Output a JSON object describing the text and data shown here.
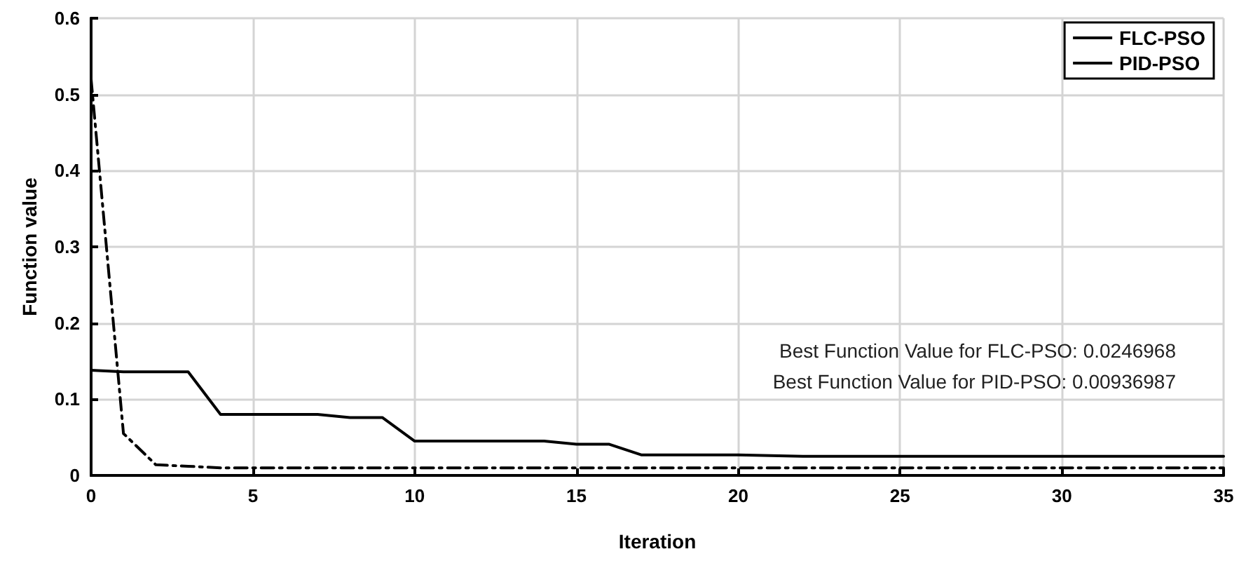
{
  "chart_data": {
    "type": "line",
    "xlabel": "Iteration",
    "ylabel": "Function value",
    "x": [
      0,
      1,
      2,
      3,
      4,
      5,
      6,
      7,
      8,
      9,
      10,
      11,
      12,
      13,
      14,
      15,
      16,
      17,
      18,
      19,
      20,
      21,
      22,
      23,
      24,
      25,
      26,
      27,
      28,
      29,
      30,
      31,
      32,
      33,
      34,
      35
    ],
    "series": [
      {
        "name": "FLC-PSO",
        "color": "#000000",
        "line_style": "solid",
        "values": [
          0.138,
          0.136,
          0.136,
          0.136,
          0.08,
          0.08,
          0.08,
          0.08,
          0.076,
          0.076,
          0.045,
          0.045,
          0.045,
          0.045,
          0.045,
          0.041,
          0.041,
          0.027,
          0.027,
          0.027,
          0.027,
          0.026,
          0.025,
          0.025,
          0.025,
          0.025,
          0.025,
          0.025,
          0.025,
          0.025,
          0.025,
          0.025,
          0.025,
          0.025,
          0.025,
          0.025
        ]
      },
      {
        "name": "PID-PSO",
        "color": "#000000",
        "line_style": "dashed",
        "values": [
          0.52,
          0.055,
          0.014,
          0.012,
          0.01,
          0.01,
          0.01,
          0.01,
          0.01,
          0.01,
          0.01,
          0.01,
          0.01,
          0.01,
          0.01,
          0.01,
          0.01,
          0.01,
          0.01,
          0.01,
          0.01,
          0.01,
          0.01,
          0.01,
          0.01,
          0.01,
          0.01,
          0.01,
          0.01,
          0.01,
          0.01,
          0.01,
          0.01,
          0.01,
          0.01,
          0.01
        ]
      }
    ],
    "xlim": [
      0,
      35
    ],
    "xticks": [
      0,
      5,
      10,
      15,
      20,
      25,
      30,
      35
    ],
    "ylim": [
      0,
      0.6
    ],
    "yticks": [
      0,
      0.1,
      0.2,
      0.3,
      0.4,
      0.5,
      0.6
    ],
    "grid": true,
    "legend": "top right",
    "marker": "none",
    "annotations": [
      "Best Function Value for FLC-PSO: 0.0246968",
      "Best Function Value for PID-PSO: 0.00936987"
    ]
  }
}
